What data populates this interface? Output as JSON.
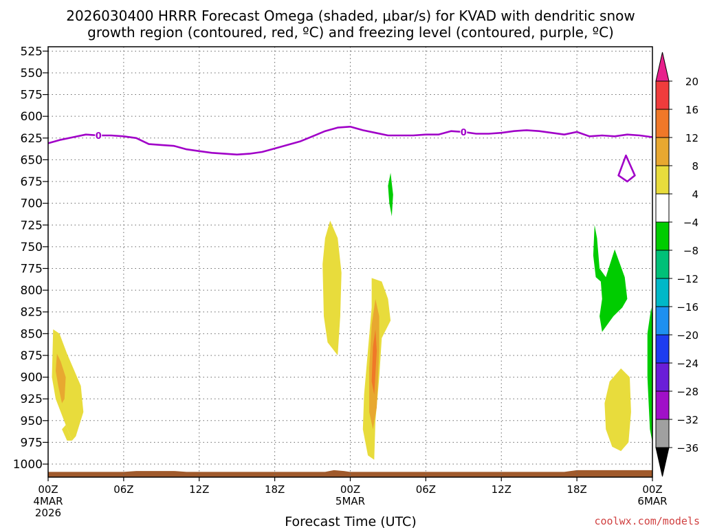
{
  "chart_data": {
    "type": "time-height",
    "title_line1": "2026030400 HRRR Forecast Omega (shaded, μbar/s) for KVAD with dendritic snow",
    "title_line2": "growth region (contoured, red, ºC) and freezing level (contoured, purple, ºC)",
    "xlabel": "Forecast Time (UTC)",
    "credit": "coolwx.com/models",
    "x_range_hours": [
      0,
      48
    ],
    "y_range_hpa": [
      520,
      1015
    ],
    "y_ticks": [
      525,
      550,
      575,
      600,
      625,
      650,
      675,
      700,
      725,
      750,
      775,
      800,
      825,
      850,
      875,
      900,
      925,
      950,
      975,
      1000
    ],
    "x_ticks": [
      {
        "hour": 0,
        "label": "00Z",
        "sub1": "4MAR",
        "sub2": "2026"
      },
      {
        "hour": 6,
        "label": "06Z",
        "sub1": "",
        "sub2": ""
      },
      {
        "hour": 12,
        "label": "12Z",
        "sub1": "",
        "sub2": ""
      },
      {
        "hour": 18,
        "label": "18Z",
        "sub1": "",
        "sub2": ""
      },
      {
        "hour": 24,
        "label": "00Z",
        "sub1": "5MAR",
        "sub2": ""
      },
      {
        "hour": 30,
        "label": "06Z",
        "sub1": "",
        "sub2": ""
      },
      {
        "hour": 36,
        "label": "12Z",
        "sub1": "",
        "sub2": ""
      },
      {
        "hour": 42,
        "label": "18Z",
        "sub1": "",
        "sub2": ""
      },
      {
        "hour": 48,
        "label": "00Z",
        "sub1": "6MAR",
        "sub2": ""
      }
    ],
    "colorbar": {
      "labels": [
        "20",
        "16",
        "12",
        "8",
        "4",
        "−4",
        "−8",
        "−12",
        "−16",
        "−20",
        "−24",
        "−28",
        "−32",
        "−36"
      ],
      "colors": [
        "#e8208c",
        "#f03c3c",
        "#f07828",
        "#e8a830",
        "#e8dc3c",
        "#ffffff",
        "#00cc00",
        "#00c078",
        "#00b8c8",
        "#1e90f0",
        "#1e3cf0",
        "#6a1ed8",
        "#a010c8",
        "#a0a0a0",
        "#000000"
      ]
    },
    "freezing_level": {
      "label": "0",
      "label_hours": [
        4,
        33
      ],
      "color": "#a000c8",
      "points": [
        [
          0,
          631
        ],
        [
          1,
          627
        ],
        [
          2,
          624
        ],
        [
          3,
          621
        ],
        [
          4,
          622
        ],
        [
          5,
          622
        ],
        [
          6,
          623
        ],
        [
          7,
          625
        ],
        [
          8,
          632
        ],
        [
          9,
          633
        ],
        [
          10,
          634
        ],
        [
          11,
          638
        ],
        [
          12,
          640
        ],
        [
          13,
          642
        ],
        [
          14,
          643
        ],
        [
          15,
          644
        ],
        [
          16,
          643
        ],
        [
          17,
          641
        ],
        [
          18,
          637
        ],
        [
          19,
          633
        ],
        [
          20,
          629
        ],
        [
          21,
          623
        ],
        [
          22,
          617
        ],
        [
          23,
          613
        ],
        [
          24,
          612
        ],
        [
          25,
          616
        ],
        [
          26,
          619
        ],
        [
          27,
          622
        ],
        [
          28,
          622
        ],
        [
          29,
          622
        ],
        [
          30,
          621
        ],
        [
          31,
          621
        ],
        [
          32,
          617
        ],
        [
          33,
          618
        ],
        [
          34,
          620
        ],
        [
          35,
          620
        ],
        [
          36,
          619
        ],
        [
          37,
          617
        ],
        [
          38,
          616
        ],
        [
          39,
          617
        ],
        [
          40,
          619
        ],
        [
          41,
          621
        ],
        [
          42,
          618
        ],
        [
          43,
          623
        ],
        [
          44,
          622
        ],
        [
          45,
          623
        ],
        [
          46,
          621
        ],
        [
          47,
          622
        ],
        [
          48,
          624
        ]
      ],
      "closed_contour": [
        [
          45.9,
          645
        ],
        [
          46.6,
          668
        ],
        [
          46.0,
          675
        ],
        [
          45.3,
          668
        ]
      ]
    },
    "omega_regions": [
      {
        "value": 6,
        "color": "#e8dc3c",
        "points": [
          [
            0.4,
            845
          ],
          [
            0.9,
            850
          ],
          [
            1.5,
            873
          ],
          [
            2.6,
            910
          ],
          [
            2.8,
            940
          ],
          [
            2.2,
            968
          ],
          [
            1.9,
            973
          ],
          [
            1.4,
            955
          ],
          [
            0.6,
            925
          ],
          [
            0.3,
            900
          ]
        ]
      },
      {
        "value": 10,
        "color": "#e8a830",
        "points": [
          [
            0.7,
            873
          ],
          [
            1.0,
            882
          ],
          [
            1.4,
            900
          ],
          [
            1.3,
            925
          ],
          [
            1.1,
            930
          ],
          [
            0.8,
            910
          ],
          [
            0.6,
            893
          ]
        ]
      },
      {
        "value": 6,
        "color": "#e8dc3c",
        "points": [
          [
            22.4,
            720
          ],
          [
            23.0,
            740
          ],
          [
            23.3,
            780
          ],
          [
            23.2,
            830
          ],
          [
            23.0,
            875
          ],
          [
            22.2,
            860
          ],
          [
            21.9,
            830
          ],
          [
            21.8,
            770
          ],
          [
            22.0,
            740
          ]
        ]
      },
      {
        "value": 6,
        "color": "#e8dc3c",
        "points": [
          [
            1.5,
            973
          ],
          [
            1.1,
            960
          ],
          [
            1.4,
            955
          ],
          [
            1.9,
            973
          ]
        ]
      },
      {
        "value": 6,
        "color": "#e8dc3c",
        "points": [
          [
            25.7,
            786
          ],
          [
            26.5,
            790
          ],
          [
            27.0,
            810
          ],
          [
            27.2,
            835
          ],
          [
            26.5,
            855
          ],
          [
            26.3,
            900
          ],
          [
            26.0,
            950
          ],
          [
            25.9,
            995
          ],
          [
            25.4,
            990
          ],
          [
            25.0,
            960
          ],
          [
            25.1,
            920
          ],
          [
            25.4,
            870
          ],
          [
            25.7,
            820
          ]
        ]
      },
      {
        "value": 10,
        "color": "#e8a830",
        "points": [
          [
            26.0,
            810
          ],
          [
            26.3,
            830
          ],
          [
            26.3,
            870
          ],
          [
            26.1,
            935
          ],
          [
            25.8,
            960
          ],
          [
            25.5,
            940
          ],
          [
            25.5,
            890
          ],
          [
            25.7,
            840
          ]
        ]
      },
      {
        "value": 14,
        "color": "#f07828",
        "points": [
          [
            26.0,
            845
          ],
          [
            26.1,
            870
          ],
          [
            25.9,
            920
          ],
          [
            25.7,
            905
          ],
          [
            25.8,
            865
          ]
        ]
      },
      {
        "value": -6,
        "color": "#00cc00",
        "points": [
          [
            27.2,
            665
          ],
          [
            27.4,
            690
          ],
          [
            27.3,
            715
          ],
          [
            27.1,
            700
          ],
          [
            27.0,
            680
          ]
        ]
      },
      {
        "value": -6,
        "color": "#00cc00",
        "points": [
          [
            43.4,
            725
          ],
          [
            43.6,
            740
          ],
          [
            43.8,
            775
          ],
          [
            44.3,
            785
          ],
          [
            45.0,
            753
          ],
          [
            45.8,
            785
          ],
          [
            46.0,
            810
          ],
          [
            45.6,
            820
          ],
          [
            44.9,
            830
          ],
          [
            44.0,
            848
          ],
          [
            43.8,
            830
          ],
          [
            44.0,
            810
          ],
          [
            43.9,
            790
          ],
          [
            43.5,
            785
          ],
          [
            43.3,
            760
          ]
        ]
      },
      {
        "value": 6,
        "color": "#e8dc3c",
        "points": [
          [
            45.5,
            890
          ],
          [
            46.2,
            900
          ],
          [
            46.3,
            940
          ],
          [
            46.1,
            975
          ],
          [
            45.5,
            985
          ],
          [
            44.8,
            980
          ],
          [
            44.3,
            960
          ],
          [
            44.2,
            930
          ],
          [
            44.6,
            905
          ]
        ]
      },
      {
        "value": -6,
        "color": "#00cc00",
        "points": [
          [
            47.9,
            820
          ],
          [
            48.0,
            830
          ],
          [
            48.0,
            975
          ],
          [
            47.8,
            960
          ],
          [
            47.6,
            900
          ],
          [
            47.6,
            850
          ]
        ]
      }
    ],
    "terrain": {
      "color": "#a05a2c",
      "surface_hpa": [
        [
          0,
          1009
        ],
        [
          6,
          1009
        ],
        [
          7,
          1008
        ],
        [
          10,
          1008
        ],
        [
          11,
          1009
        ],
        [
          22,
          1009
        ],
        [
          22.7,
          1007
        ],
        [
          23.5,
          1008
        ],
        [
          24,
          1009
        ],
        [
          41,
          1009
        ],
        [
          42,
          1007
        ],
        [
          48,
          1007
        ]
      ]
    }
  }
}
